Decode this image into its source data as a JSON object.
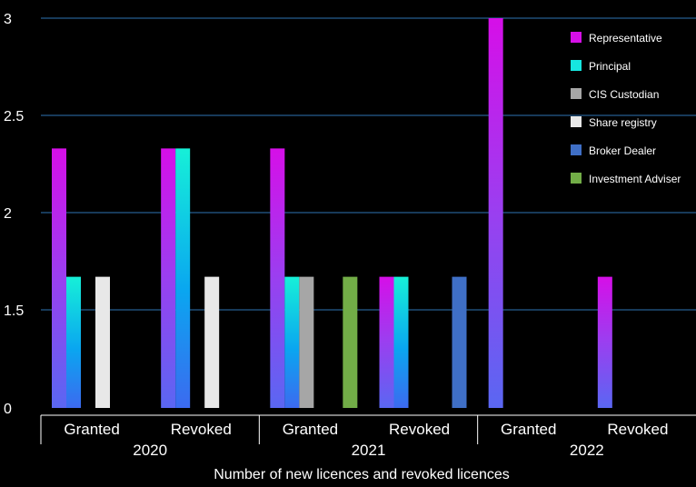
{
  "chart_data": {
    "type": "bar",
    "xlabel": "Number of new licences and revoked licences",
    "y_ticks": [
      "0",
      "1.5",
      "2",
      "2.5",
      "3"
    ],
    "y_axis_note": "gridlines at 1.5, 2, 2.5 and 3; axis baseline labelled 0",
    "groups": [
      {
        "year": "2020",
        "subgroups": [
          "Granted",
          "Revoked"
        ]
      },
      {
        "year": "2021",
        "subgroups": [
          "Granted",
          "Revoked"
        ]
      },
      {
        "year": "2022",
        "subgroups": [
          "Granted",
          "Revoked"
        ]
      }
    ],
    "categories": [
      "2020 Granted",
      "2020 Revoked",
      "2021 Granted",
      "2021 Revoked",
      "2022 Granted",
      "2022 Revoked"
    ],
    "series": [
      {
        "name": "Representative",
        "color": "#d60fe8",
        "values": [
          2.33,
          2.33,
          2.33,
          1.67,
          3,
          1.67
        ]
      },
      {
        "name": "Principal",
        "color": "#16e6e0",
        "values": [
          1.67,
          2.33,
          1.67,
          1.67,
          0,
          0
        ]
      },
      {
        "name": "CIS Custodian",
        "color": "#a6a6a6",
        "values": [
          0,
          0,
          1.67,
          0,
          0,
          0
        ]
      },
      {
        "name": "Share registry",
        "color": "#e8e8e8",
        "values": [
          1.67,
          1.67,
          0,
          0,
          0,
          0
        ]
      },
      {
        "name": "Broker Dealer",
        "color": "#3f6fc6",
        "values": [
          0,
          0,
          0,
          1.67,
          0,
          0
        ]
      },
      {
        "name": "Investment Adviser",
        "color": "#72ad47",
        "values": [
          0,
          0,
          1.67,
          0,
          0,
          0
        ]
      }
    ],
    "legend_position": "top-right",
    "grid": true,
    "colors": {
      "background": "#000000",
      "grid": "#1f4e79",
      "axis": "#ffffff"
    }
  }
}
